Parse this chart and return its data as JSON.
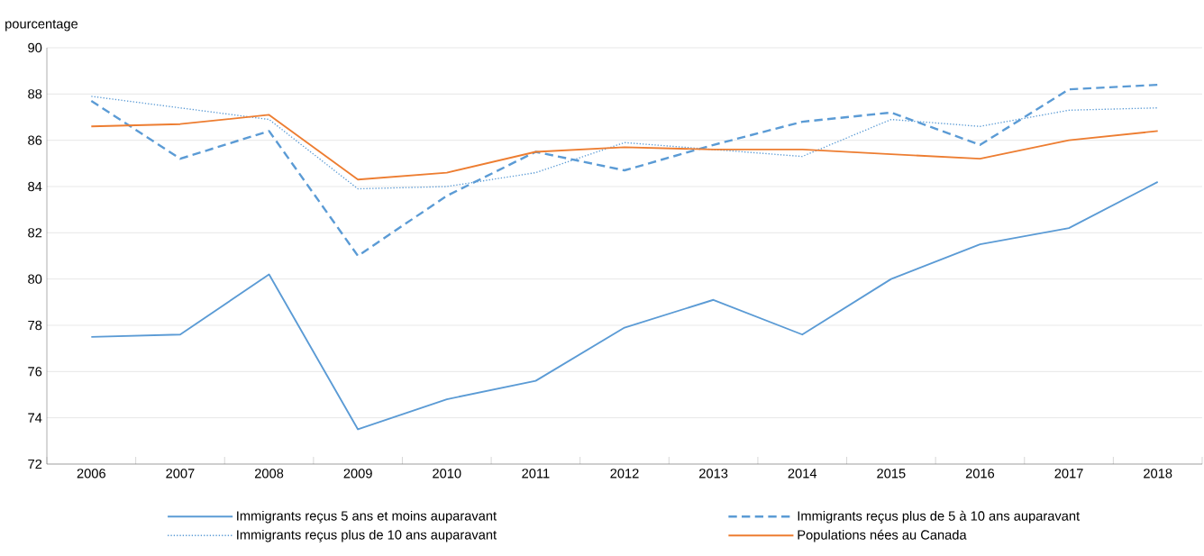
{
  "chart_data": {
    "type": "line",
    "ylabel": "pourcentage",
    "categories": [
      "2006",
      "2007",
      "2008",
      "2009",
      "2010",
      "2011",
      "2012",
      "2013",
      "2014",
      "2015",
      "2016",
      "2017",
      "2018"
    ],
    "series": [
      {
        "name": "Immigrants reçus 5 ans et moins auparavant",
        "color": "#5b9bd5",
        "line_style": "solid",
        "values": [
          77.5,
          77.6,
          80.2,
          73.5,
          74.8,
          75.6,
          77.9,
          79.1,
          77.6,
          80.0,
          81.5,
          82.2,
          84.2
        ]
      },
      {
        "name": "Immigrants reçus plus de 5 à 10 ans auparavant",
        "color": "#5b9bd5",
        "line_style": "dashed",
        "values": [
          87.7,
          85.2,
          86.4,
          81.0,
          83.6,
          85.5,
          84.7,
          85.8,
          86.8,
          87.2,
          85.8,
          88.2,
          88.4
        ]
      },
      {
        "name": "Immigrants reçus plus de 10 ans auparavant",
        "color": "#5b9bd5",
        "line_style": "dotted",
        "values": [
          87.9,
          87.4,
          86.9,
          83.9,
          84.0,
          84.6,
          85.9,
          85.6,
          85.3,
          86.9,
          86.6,
          87.3,
          87.4
        ]
      },
      {
        "name": "Populations nées au Canada",
        "color": "#ed7d31",
        "line_style": "solid",
        "values": [
          86.6,
          86.7,
          87.1,
          84.3,
          84.6,
          85.5,
          85.7,
          85.6,
          85.6,
          85.4,
          85.2,
          86.0,
          86.4
        ]
      }
    ],
    "ylim": [
      72,
      90
    ],
    "yticks": [
      72,
      74,
      76,
      78,
      80,
      82,
      84,
      86,
      88,
      90
    ],
    "grid": "y",
    "legend": "bottom",
    "marker": "none"
  }
}
